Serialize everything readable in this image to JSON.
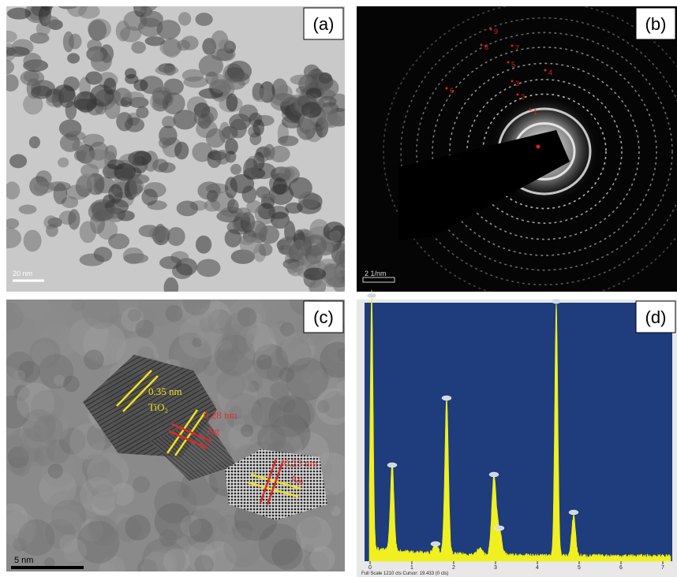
{
  "panels": [
    {
      "label": "(a)",
      "scale_bar": "20 nm"
    },
    {
      "label": "(b)",
      "scale_bar": "2 1/nm",
      "ring_labels": [
        "1",
        "2",
        "3",
        "4",
        "5",
        "6",
        "7",
        "8",
        "9"
      ]
    },
    {
      "label": "(c)",
      "scale_bar": "5 nm",
      "annotations": [
        "0.35 nm",
        "TiO₂",
        "0.28 nm",
        "Ag",
        "0.23 nm",
        "Ag"
      ]
    },
    {
      "label": "(d)",
      "x_ticks": [
        0,
        1,
        2,
        3,
        4,
        5,
        6,
        7
      ],
      "footer": "Full Scale 1210 cts Cursor: 19.433 (0 cts)"
    }
  ]
}
